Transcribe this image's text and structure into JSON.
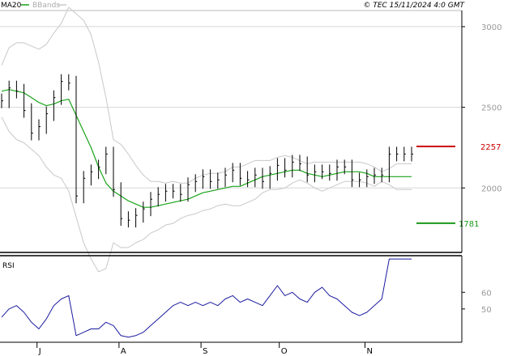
{
  "legend": {
    "ma_label": "MA20",
    "ma_color": "#1aa31a",
    "bbands_label": "BBands",
    "bbands_color": "#c8c8c8"
  },
  "copyright": "© TEC 15/11/2024 4:0 GMT",
  "rsi_label": "RSI",
  "colors": {
    "price": "#000000",
    "ma": "#1aa31a",
    "bbands": "#c8c8c8",
    "rsi": "#1a1aa0",
    "resistance": "#cc0000",
    "support": "#1a9a1a",
    "grid": "#d8d8d8",
    "axis_text": "#999999"
  },
  "levels": {
    "resistance": {
      "value": 2257,
      "label": "2257"
    },
    "support": {
      "value": 1781,
      "label": "1781"
    }
  },
  "chart_data": [
    {
      "type": "line",
      "title": "",
      "ylim": [
        1600,
        3100
      ],
      "yticks": [
        {
          "value": 3000,
          "label": "3000"
        },
        {
          "value": 2500,
          "label": "2500"
        },
        {
          "value": 2000,
          "label": "2000"
        }
      ],
      "x": [
        0,
        2,
        4,
        6,
        8,
        10,
        12,
        14,
        16,
        18,
        20,
        22,
        24,
        26,
        28,
        30,
        32,
        34,
        36,
        38,
        40,
        42,
        44,
        46,
        48,
        50,
        52,
        54,
        56,
        58,
        60,
        62,
        64,
        66,
        68,
        70,
        72,
        74,
        76,
        78,
        80,
        82,
        84,
        86,
        88,
        90,
        92,
        94,
        96,
        98,
        100,
        102,
        104,
        106,
        108,
        110
      ],
      "xticks": [
        {
          "value": 9.5,
          "label": "J"
        },
        {
          "value": 31.5,
          "label": "A"
        },
        {
          "value": 53.5,
          "label": "S"
        },
        {
          "value": 74.5,
          "label": "O"
        },
        {
          "value": 97.5,
          "label": "N"
        }
      ],
      "series": [
        {
          "values": [
            2540,
            2620,
            2600,
            2480,
            2340,
            2380,
            2460,
            2560,
            2660,
            2650,
            1950,
            2060,
            2100,
            2130,
            2210,
            1990,
            1810,
            1800,
            1830,
            1870,
            1930,
            1960,
            1980,
            1980,
            1960,
            2020,
            2040,
            2070,
            2040,
            2050,
            2080,
            2110,
            2060,
            2050,
            2080,
            2040,
            2090,
            2140,
            2110,
            2160,
            2150,
            2080,
            2100,
            2100,
            2090,
            2130,
            2130,
            2050,
            2050,
            2070,
            2080,
            2080,
            2210,
            2210,
            2210,
            2210
          ]
        },
        {
          "name": "MA20",
          "values": [
            2600,
            2610,
            2600,
            2590,
            2560,
            2530,
            2510,
            2520,
            2540,
            2550,
            2450,
            2350,
            2250,
            2130,
            2030,
            1980,
            1950,
            1920,
            1900,
            1880,
            1880,
            1890,
            1900,
            1910,
            1920,
            1930,
            1950,
            1970,
            1980,
            1990,
            2000,
            2010,
            2010,
            2030,
            2050,
            2070,
            2080,
            2090,
            2100,
            2110,
            2110,
            2090,
            2080,
            2070,
            2080,
            2090,
            2100,
            2100,
            2100,
            2090,
            2070,
            2070,
            2070,
            2070,
            2070,
            2070
          ]
        },
        {
          "name": "BBands",
          "values": [
            2760,
            2870,
            2900,
            2900,
            2880,
            2860,
            2890,
            2960,
            3020,
            3120,
            3080,
            3040,
            2950,
            2780,
            2560,
            2300,
            2270,
            2210,
            2140,
            2080,
            2040,
            2040,
            2030,
            2040,
            2030,
            2030,
            2060,
            2080,
            2090,
            2090,
            2100,
            2130,
            2130,
            2150,
            2170,
            2170,
            2170,
            2190,
            2200,
            2190,
            2170,
            2150,
            2160,
            2160,
            2160,
            2160,
            2160,
            2160,
            2160,
            2150,
            2130,
            2100,
            2120,
            2150,
            2150,
            2150
          ]
        },
        {
          "name": "BBands",
          "values": [
            2440,
            2350,
            2300,
            2280,
            2240,
            2200,
            2130,
            2080,
            2060,
            1980,
            1820,
            1660,
            1560,
            1480,
            1500,
            1660,
            1630,
            1630,
            1660,
            1680,
            1720,
            1740,
            1770,
            1780,
            1810,
            1830,
            1840,
            1860,
            1870,
            1890,
            1900,
            1890,
            1890,
            1910,
            1930,
            1970,
            1990,
            1990,
            2000,
            2030,
            2050,
            2030,
            2000,
            1980,
            2000,
            2020,
            2040,
            2040,
            2040,
            2030,
            2010,
            2040,
            2020,
            1990,
            1990,
            1990
          ]
        }
      ]
    },
    {
      "type": "line",
      "title": "RSI",
      "ylim": [
        30,
        82
      ],
      "yticks": [
        {
          "value": 60,
          "label": "60"
        },
        {
          "value": 50,
          "label": "50"
        }
      ],
      "x": [
        0,
        2,
        4,
        6,
        8,
        10,
        12,
        14,
        16,
        18,
        20,
        22,
        24,
        26,
        28,
        30,
        32,
        34,
        36,
        38,
        40,
        42,
        44,
        46,
        48,
        50,
        52,
        54,
        56,
        58,
        60,
        62,
        64,
        66,
        68,
        70,
        72,
        74,
        76,
        78,
        80,
        82,
        84,
        86,
        88,
        90,
        92,
        94,
        96,
        98,
        100,
        102,
        104,
        106,
        108,
        110
      ],
      "series": [
        {
          "name": "RSI",
          "values": [
            45,
            50,
            52,
            48,
            42,
            38,
            44,
            52,
            56,
            58,
            34,
            36,
            38,
            38,
            42,
            40,
            34,
            33,
            34,
            36,
            40,
            44,
            48,
            52,
            54,
            52,
            54,
            52,
            54,
            52,
            56,
            58,
            54,
            56,
            54,
            52,
            58,
            64,
            58,
            60,
            56,
            54,
            60,
            63,
            58,
            56,
            52,
            48,
            46,
            48,
            52,
            56,
            80,
            80,
            80,
            80
          ]
        }
      ]
    }
  ]
}
